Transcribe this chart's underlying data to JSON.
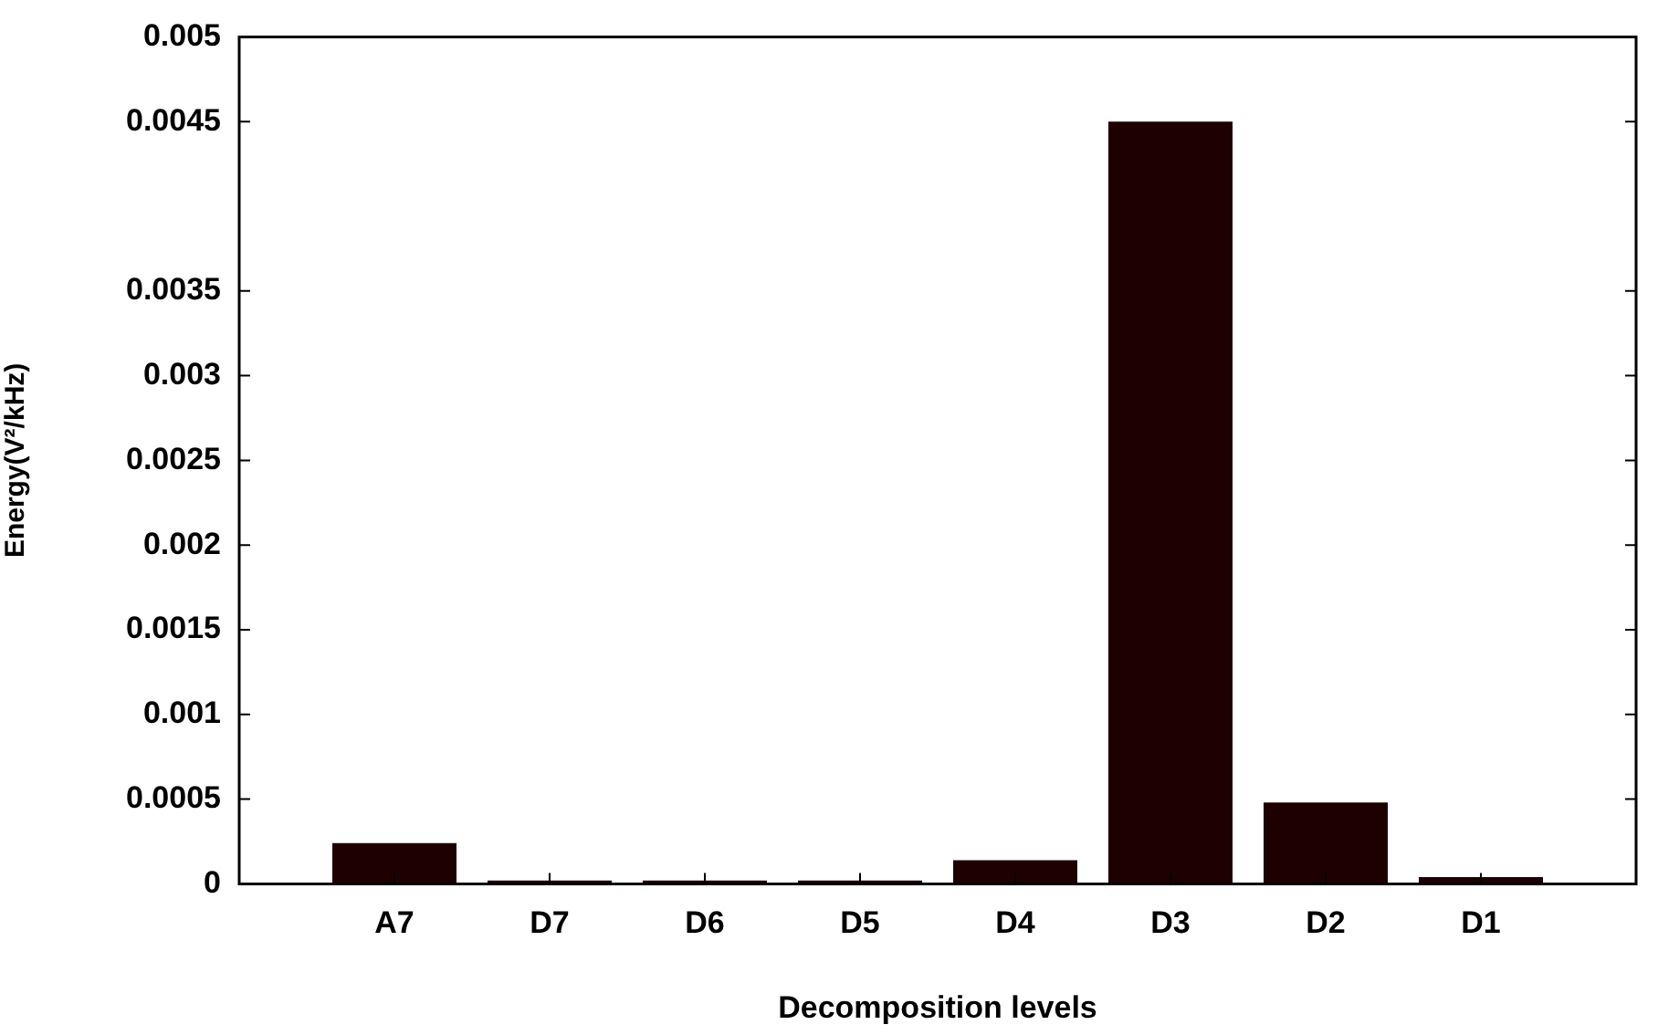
{
  "chart_data": {
    "type": "bar",
    "xlabel": "Decomposition levels",
    "ylabel": "Energy(V²/kHz)",
    "categories": [
      null,
      "A7",
      "D7",
      "D6",
      "D5",
      "D4",
      "D3",
      "D2",
      "D1",
      null
    ],
    "values": [
      null,
      0.00024,
      2e-05,
      2e-05,
      2e-05,
      0.00014,
      0.0045,
      0.00048,
      4e-05,
      null
    ],
    "color": "#1e0000",
    "ylim": [
      0,
      0.005
    ],
    "yticks": [
      0,
      0.0005,
      0.001,
      0.0015,
      0.002,
      0.0025,
      0.003,
      0.0035,
      0.0045,
      0.005
    ],
    "grid": false,
    "legend": false
  }
}
